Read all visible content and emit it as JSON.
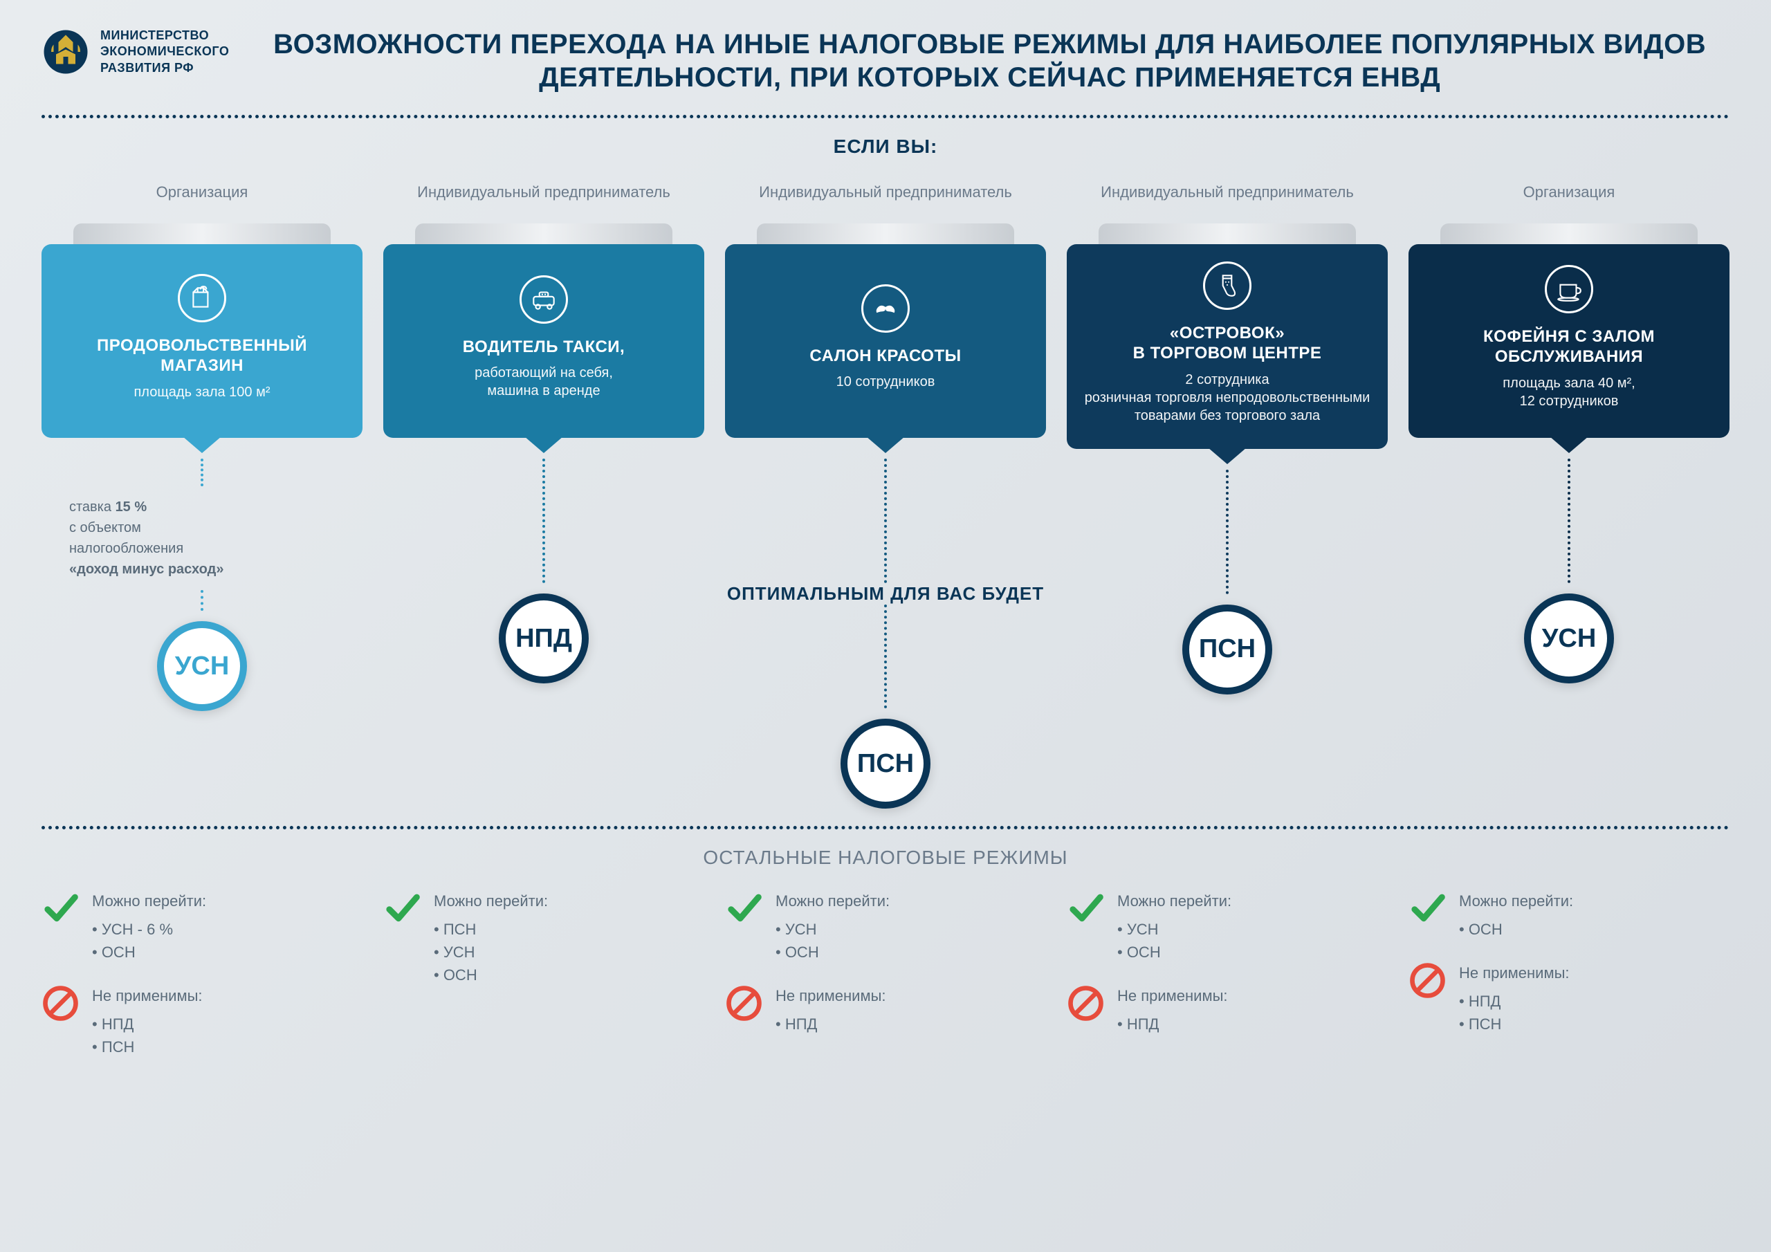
{
  "header": {
    "ministry_line1": "МИНИСТЕРСТВО",
    "ministry_line2": "ЭКОНОМИЧЕСКОГО",
    "ministry_line3": "РАЗВИТИЯ РФ",
    "title": "ВОЗМОЖНОСТИ ПЕРЕХОДА НА ИНЫЕ НАЛОГОВЫЕ РЕЖИМЫ ДЛЯ НАИБОЛЕЕ ПОПУЛЯРНЫХ ВИДОВ ДЕЯТЕЛЬНОСТИ, ПРИ КОТОРЫХ СЕЙЧАС ПРИМЕНЯЕТСЯ ЕНВД"
  },
  "labels": {
    "if_you": "ЕСЛИ ВЫ:",
    "optimal": "ОПТИМАЛЬНЫМ ДЛЯ ВАС БУДЕТ",
    "other_regimes": "ОСТАЛЬНЫЕ НАЛОГОВЫЕ РЕЖИМЫ",
    "can_switch": "Можно перейти:",
    "not_applicable": "Не применимы:"
  },
  "colors": {
    "dark_navy": "#0a3556",
    "check_green": "#2ea84f",
    "prohibit_red": "#e74c3c"
  },
  "columns": [
    {
      "entity": "Организация",
      "color": "#3aa6d0",
      "icon": "grocery",
      "title": "ПРОДОВОЛЬСТВЕННЫЙ МАГАЗИН",
      "sub": "площадь зала 100 м²",
      "extra": "ставка <b>15 %</b><br>с объектом<br>налогообложения<br><b>«доход минус расход»</b>",
      "regime": "УСН",
      "regime_color": "#3aa6d0",
      "can": [
        "• УСН - 6 %",
        "• ОСН"
      ],
      "cannot": [
        "• НПД",
        "• ПСН"
      ]
    },
    {
      "entity": "Индивидуальный предприниматель",
      "color": "#1b7ba3",
      "icon": "taxi",
      "title": "ВОДИТЕЛЬ ТАКСИ,",
      "sub": "работающий на себя,<br>машина в аренде",
      "extra": "",
      "regime": "НПД",
      "regime_color": "#0a3556",
      "can": [
        "• ПСН",
        "• УСН",
        "• ОСН"
      ],
      "cannot": []
    },
    {
      "entity": "Индивидуальный предприниматель",
      "color": "#145a80",
      "icon": "mustache",
      "title": "САЛОН КРАСОТЫ",
      "sub": "10 сотрудников",
      "extra": "",
      "regime": "ПСН",
      "regime_color": "#0a3556",
      "can": [
        "• УСН",
        "• ОСН"
      ],
      "cannot": [
        "• НПД"
      ]
    },
    {
      "entity": "Индивидуальный предприниматель",
      "color": "#0e3a5c",
      "icon": "sock",
      "title": "«ОСТРОВОК»<br>В ТОРГОВОМ ЦЕНТРЕ",
      "sub": "2 сотрудника<br>розничная торговля непродовольственными товарами без торгового зала",
      "extra": "",
      "regime": "ПСН",
      "regime_color": "#0a3556",
      "can": [
        "• УСН",
        "• ОСН"
      ],
      "cannot": [
        "• НПД"
      ]
    },
    {
      "entity": "Организация",
      "color": "#0a2d4a",
      "icon": "coffee",
      "title": "КОФЕЙНЯ С ЗАЛОМ ОБСЛУЖИВАНИЯ",
      "sub": "площадь зала 40 м²,<br>12 сотрудников",
      "extra": "",
      "regime": "УСН",
      "regime_color": "#0a3556",
      "can": [
        "• ОСН"
      ],
      "cannot": [
        "• НПД",
        "• ПСН"
      ]
    }
  ]
}
